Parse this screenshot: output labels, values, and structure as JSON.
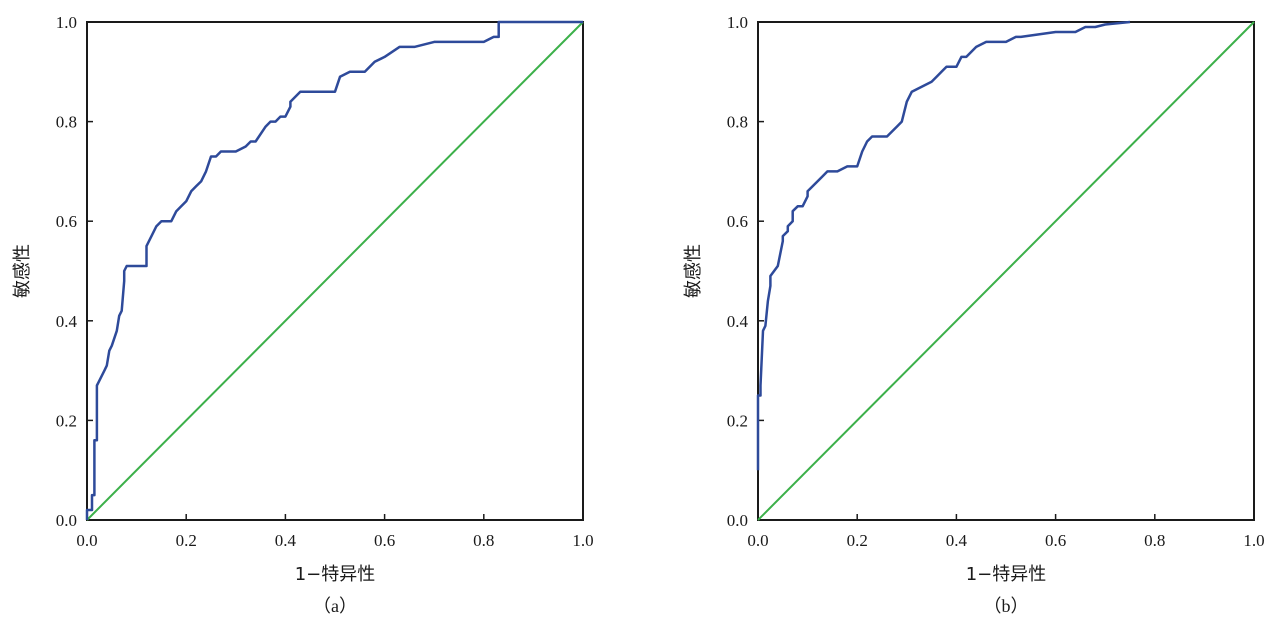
{
  "chart_data": [
    {
      "type": "line",
      "panel_label": "（a）",
      "xlabel": "1−特异性",
      "ylabel": "敏感性",
      "xlim": [
        0,
        1
      ],
      "ylim": [
        0,
        1
      ],
      "xticks": [
        "0.0",
        "0.2",
        "0.4",
        "0.6",
        "0.8",
        "1.0"
      ],
      "yticks": [
        "0.0",
        "0.2",
        "0.4",
        "0.6",
        "0.8",
        "1.0"
      ],
      "grid": false,
      "colors": {
        "roc": "#2e4a9a",
        "reference": "#3cb04a"
      },
      "series": [
        {
          "x": [
            0.0,
            0.0,
            0.01,
            0.01,
            0.015,
            0.015,
            0.02,
            0.02,
            0.03,
            0.035,
            0.04,
            0.045,
            0.05,
            0.06,
            0.065,
            0.07,
            0.075,
            0.075,
            0.08,
            0.09,
            0.1,
            0.12,
            0.12,
            0.13,
            0.14,
            0.15,
            0.17,
            0.18,
            0.19,
            0.2,
            0.21,
            0.22,
            0.23,
            0.24,
            0.25,
            0.26,
            0.27,
            0.3,
            0.32,
            0.33,
            0.34,
            0.36,
            0.37,
            0.38,
            0.39,
            0.4,
            0.41,
            0.41,
            0.43,
            0.5,
            0.51,
            0.53,
            0.56,
            0.58,
            0.6,
            0.63,
            0.66,
            0.7,
            0.75,
            0.8,
            0.82,
            0.83,
            0.83,
            1.0
          ],
          "y": [
            0.0,
            0.02,
            0.02,
            0.05,
            0.05,
            0.16,
            0.16,
            0.27,
            0.29,
            0.3,
            0.31,
            0.34,
            0.35,
            0.38,
            0.41,
            0.42,
            0.48,
            0.5,
            0.51,
            0.51,
            0.51,
            0.51,
            0.55,
            0.57,
            0.59,
            0.6,
            0.6,
            0.62,
            0.63,
            0.64,
            0.66,
            0.67,
            0.68,
            0.7,
            0.73,
            0.73,
            0.74,
            0.74,
            0.75,
            0.76,
            0.76,
            0.79,
            0.8,
            0.8,
            0.81,
            0.81,
            0.83,
            0.84,
            0.86,
            0.86,
            0.89,
            0.9,
            0.9,
            0.92,
            0.93,
            0.95,
            0.95,
            0.96,
            0.96,
            0.96,
            0.97,
            0.97,
            1.0,
            1.0
          ]
        },
        {
          "x": [
            0.0,
            1.0
          ],
          "y": [
            0.0,
            1.0
          ]
        }
      ]
    },
    {
      "type": "line",
      "panel_label": "（b）",
      "xlabel": "1−特异性",
      "ylabel": "敏感性",
      "xlim": [
        0,
        1
      ],
      "ylim": [
        0,
        1
      ],
      "xticks": [
        "0.0",
        "0.2",
        "0.4",
        "0.6",
        "0.8",
        "1.0"
      ],
      "yticks": [
        "0.0",
        "0.2",
        "0.4",
        "0.6",
        "0.8",
        "1.0"
      ],
      "grid": false,
      "colors": {
        "roc": "#2e4a9a",
        "reference": "#3cb04a"
      },
      "series": [
        {
          "x": [
            0.0,
            0.0,
            0.005,
            0.005,
            0.01,
            0.015,
            0.02,
            0.025,
            0.025,
            0.04,
            0.05,
            0.05,
            0.06,
            0.06,
            0.07,
            0.07,
            0.08,
            0.09,
            0.1,
            0.1,
            0.12,
            0.13,
            0.14,
            0.15,
            0.16,
            0.18,
            0.2,
            0.21,
            0.22,
            0.23,
            0.26,
            0.28,
            0.29,
            0.3,
            0.31,
            0.33,
            0.35,
            0.36,
            0.37,
            0.38,
            0.4,
            0.41,
            0.42,
            0.44,
            0.46,
            0.5,
            0.52,
            0.53,
            0.6,
            0.64,
            0.66,
            0.68,
            0.7,
            0.75
          ],
          "y": [
            0.1,
            0.25,
            0.25,
            0.27,
            0.38,
            0.39,
            0.44,
            0.47,
            0.49,
            0.51,
            0.56,
            0.57,
            0.58,
            0.59,
            0.6,
            0.62,
            0.63,
            0.63,
            0.65,
            0.66,
            0.68,
            0.69,
            0.7,
            0.7,
            0.7,
            0.71,
            0.71,
            0.74,
            0.76,
            0.77,
            0.77,
            0.79,
            0.8,
            0.84,
            0.86,
            0.87,
            0.88,
            0.89,
            0.9,
            0.91,
            0.91,
            0.93,
            0.93,
            0.95,
            0.96,
            0.96,
            0.97,
            0.97,
            0.98,
            0.98,
            0.99,
            0.99,
            0.995,
            1.0
          ]
        },
        {
          "x": [
            0.0,
            1.0
          ],
          "y": [
            0.0,
            1.0
          ]
        }
      ]
    }
  ]
}
